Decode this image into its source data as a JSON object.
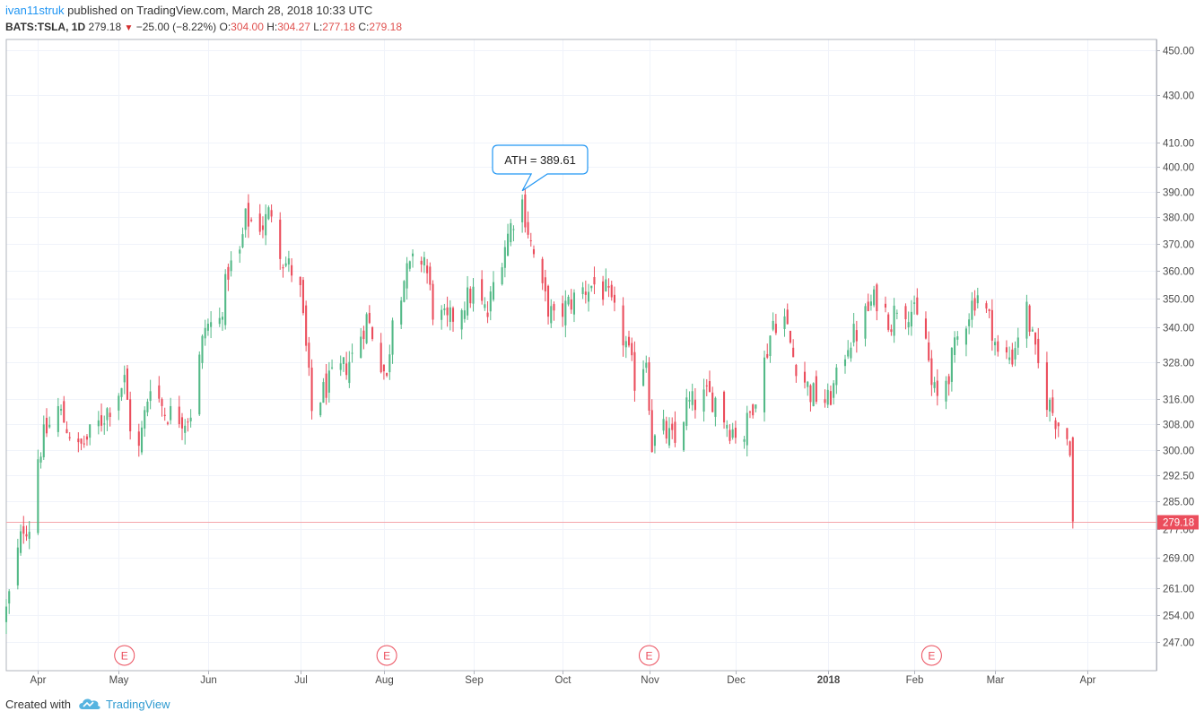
{
  "header": {
    "author": "ivan11struk",
    "published_text": " published on TradingView.com, March 28, 2018 10:33 UTC",
    "symbol": "BATS:TSLA, 1D",
    "last": "279.18",
    "down_arrow": "▼",
    "change": "−25.00 (−8.22%)",
    "o_label": "O:",
    "o_value": "304.00",
    "h_label": "H:",
    "h_value": "304.27",
    "l_label": "L:",
    "l_value": "277.18",
    "c_label": "C:",
    "c_value": "279.18"
  },
  "footer": {
    "created_with": "Created with",
    "brand": "TradingView",
    "logo_icon": "tradingview-cloud-icon"
  },
  "colors": {
    "up": "#53b987",
    "down": "#eb4d5c",
    "grid": "#f0f3fa",
    "axis_text": "#4a4a4a",
    "price_line": "#f4a5aa",
    "annotation_border": "#2196f3",
    "earnings": "#eb4d5c"
  },
  "chart_data": {
    "type": "candlestick",
    "series_name": "BATS:TSLA, 1D",
    "y_scale": "log",
    "ylim": [
      240,
      455
    ],
    "y_ticks": [
      247,
      254,
      261,
      269,
      277,
      285,
      292.5,
      300,
      308,
      316,
      328,
      340,
      350,
      360,
      370,
      380,
      390,
      400,
      410,
      430,
      450
    ],
    "y_tick_labels": [
      "247.00",
      "254.00",
      "261.00",
      "269.00",
      "277.00",
      "285.00",
      "292.50",
      "300.00",
      "308.00",
      "316.00",
      "328.00",
      "340.00",
      "350.00",
      "360.00",
      "370.00",
      "380.00",
      "390.00",
      "400.00",
      "410.00",
      "430.00",
      "450.00"
    ],
    "x_ticks": [
      {
        "date": "2017-04-03",
        "label": "Apr",
        "bold": false
      },
      {
        "date": "2017-05-01",
        "label": "May",
        "bold": false
      },
      {
        "date": "2017-06-01",
        "label": "Jun",
        "bold": false
      },
      {
        "date": "2017-07-03",
        "label": "Jul",
        "bold": false
      },
      {
        "date": "2017-08-01",
        "label": "Aug",
        "bold": false
      },
      {
        "date": "2017-09-01",
        "label": "Sep",
        "bold": false
      },
      {
        "date": "2017-10-02",
        "label": "Oct",
        "bold": false
      },
      {
        "date": "2017-11-01",
        "label": "Nov",
        "bold": false
      },
      {
        "date": "2017-12-01",
        "label": "Dec",
        "bold": false
      },
      {
        "date": "2018-01-02",
        "label": "2018",
        "bold": true
      },
      {
        "date": "2018-02-01",
        "label": "Feb",
        "bold": false
      },
      {
        "date": "2018-03-01",
        "label": "Mar",
        "bold": false
      },
      {
        "date": "2018-04-02",
        "label": "Apr",
        "bold": false
      }
    ],
    "x_range_dates": [
      "2017-03-23",
      "2018-04-26"
    ],
    "last_price": 279.18,
    "last_price_label": "279.18",
    "earnings_dates": [
      "2017-05-03",
      "2017-08-02",
      "2017-11-01",
      "2018-02-07"
    ],
    "earnings_label": "E",
    "annotation": {
      "text": "ATH = 389.61",
      "date": "2017-09-18",
      "price": 389.61
    },
    "anchors": [
      [
        "2017-03-23",
        255
      ],
      [
        "2017-03-29",
        278
      ],
      [
        "2017-03-31",
        278
      ],
      [
        "2017-04-03",
        298
      ],
      [
        "2017-04-05",
        304
      ],
      [
        "2017-04-10",
        313
      ],
      [
        "2017-04-17",
        300
      ],
      [
        "2017-04-24",
        308
      ],
      [
        "2017-04-28",
        314
      ],
      [
        "2017-05-03",
        322
      ],
      [
        "2017-05-05",
        308
      ],
      [
        "2017-05-08",
        300
      ],
      [
        "2017-05-12",
        322
      ],
      [
        "2017-05-17",
        312
      ],
      [
        "2017-05-24",
        310
      ],
      [
        "2017-05-26",
        312
      ],
      [
        "2017-05-31",
        340
      ],
      [
        "2017-06-05",
        342
      ],
      [
        "2017-06-08",
        360
      ],
      [
        "2017-06-12",
        366
      ],
      [
        "2017-06-14",
        379
      ],
      [
        "2017-06-20",
        377
      ],
      [
        "2017-06-23",
        383
      ],
      [
        "2017-06-27",
        364
      ],
      [
        "2017-06-30",
        360
      ],
      [
        "2017-07-03",
        352
      ],
      [
        "2017-07-07",
        312
      ],
      [
        "2017-07-12",
        320
      ],
      [
        "2017-07-18",
        326
      ],
      [
        "2017-07-21",
        330
      ],
      [
        "2017-07-26",
        343
      ],
      [
        "2017-07-28",
        338
      ],
      [
        "2017-08-02",
        322
      ],
      [
        "2017-08-04",
        345
      ],
      [
        "2017-08-08",
        357
      ],
      [
        "2017-08-11",
        362
      ],
      [
        "2017-08-15",
        365
      ],
      [
        "2017-08-18",
        346
      ],
      [
        "2017-08-23",
        341
      ],
      [
        "2017-08-28",
        348
      ],
      [
        "2017-09-01",
        352
      ],
      [
        "2017-09-06",
        344
      ],
      [
        "2017-09-08",
        355
      ],
      [
        "2017-09-12",
        370
      ],
      [
        "2017-09-15",
        380
      ],
      [
        "2017-09-18",
        386
      ],
      [
        "2017-09-21",
        370
      ],
      [
        "2017-09-25",
        352
      ],
      [
        "2017-09-29",
        342
      ],
      [
        "2017-10-04",
        348
      ],
      [
        "2017-10-09",
        353
      ],
      [
        "2017-10-13",
        355
      ],
      [
        "2017-10-17",
        352
      ],
      [
        "2017-10-20",
        344
      ],
      [
        "2017-10-24",
        334
      ],
      [
        "2017-10-27",
        322
      ],
      [
        "2017-10-31",
        330
      ],
      [
        "2017-11-02",
        302
      ],
      [
        "2017-11-06",
        306
      ],
      [
        "2017-11-10",
        302
      ],
      [
        "2017-11-14",
        314
      ],
      [
        "2017-11-17",
        315
      ],
      [
        "2017-11-21",
        317
      ],
      [
        "2017-11-24",
        316
      ],
      [
        "2017-11-29",
        307
      ],
      [
        "2017-12-01",
        306
      ],
      [
        "2017-12-04",
        305
      ],
      [
        "2017-12-07",
        315
      ],
      [
        "2017-12-11",
        328
      ],
      [
        "2017-12-14",
        342
      ],
      [
        "2017-12-18",
        343
      ],
      [
        "2017-12-21",
        330
      ],
      [
        "2017-12-27",
        318
      ],
      [
        "2018-01-02",
        315
      ],
      [
        "2018-01-05",
        322
      ],
      [
        "2018-01-09",
        335
      ],
      [
        "2018-01-12",
        338
      ],
      [
        "2018-01-17",
        348
      ],
      [
        "2018-01-19",
        350
      ],
      [
        "2018-01-24",
        342
      ],
      [
        "2018-01-26",
        348
      ],
      [
        "2018-01-31",
        346
      ],
      [
        "2018-02-05",
        336
      ],
      [
        "2018-02-07",
        320
      ],
      [
        "2018-02-09",
        316
      ],
      [
        "2018-02-13",
        325
      ],
      [
        "2018-02-16",
        336
      ],
      [
        "2018-02-21",
        348
      ],
      [
        "2018-02-23",
        352
      ],
      [
        "2018-02-28",
        340
      ],
      [
        "2018-03-02",
        330
      ],
      [
        "2018-03-07",
        330
      ],
      [
        "2018-03-09",
        338
      ],
      [
        "2018-03-12",
        346
      ],
      [
        "2018-03-15",
        330
      ],
      [
        "2018-03-19",
        316
      ],
      [
        "2018-03-22",
        310
      ],
      [
        "2018-03-26",
        304
      ],
      [
        "2018-03-27",
        302
      ],
      [
        "2018-03-28",
        279.18
      ]
    ]
  }
}
